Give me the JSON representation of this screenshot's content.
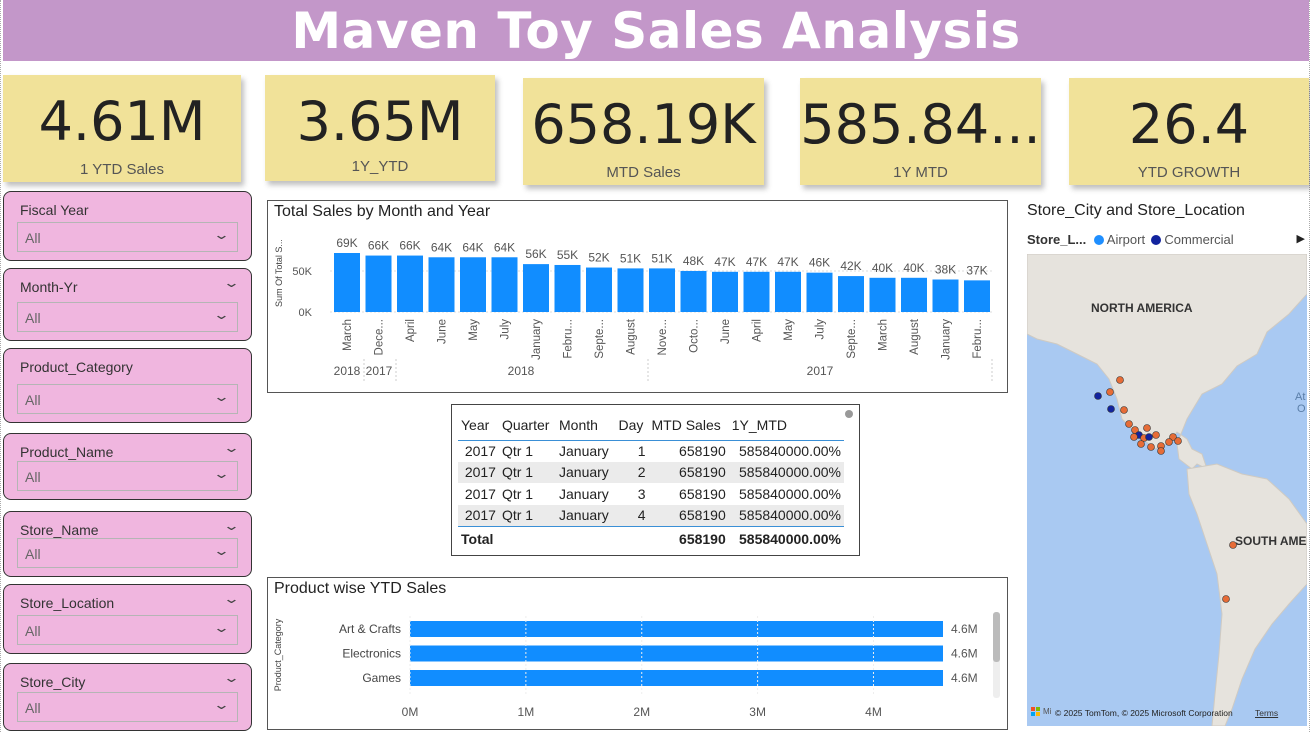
{
  "title": "Maven Toy Sales Analysis",
  "kpis": [
    {
      "value": "4.61M",
      "label": "1 YTD Sales"
    },
    {
      "value": "3.65M",
      "label": "1Y_YTD"
    },
    {
      "value": "658.19K",
      "label": "MTD Sales"
    },
    {
      "value": "585.84...",
      "label": "1Y  MTD"
    },
    {
      "value": "26.4",
      "label": "YTD GROWTH"
    }
  ],
  "slicers": [
    {
      "title": "Fiscal Year",
      "value": "All"
    },
    {
      "title": "Month-Yr",
      "value": "All"
    },
    {
      "title": "Product_Category",
      "value": "All"
    },
    {
      "title": "Product_Name",
      "value": "All"
    },
    {
      "title": "Store_Name",
      "value": "All"
    },
    {
      "title": "Store_Location",
      "value": "All"
    },
    {
      "title": "Store_City",
      "value": "All"
    }
  ],
  "month_chart": {
    "title": "Total Sales by Month and Year",
    "ylabel": "Sum Of Total S...",
    "yticks": [
      "50K",
      "0K"
    ],
    "year_groups": [
      "2018",
      "2017",
      "2018",
      "2017"
    ]
  },
  "product_chart": {
    "title": "Product wise YTD Sales",
    "ylabel": "Product_Category",
    "xticks": [
      "0M",
      "1M",
      "2M",
      "3M",
      "4M"
    ]
  },
  "table": {
    "headers": [
      "Year",
      "Quarter",
      "Month",
      "Day",
      "MTD Sales",
      "1Y_MTD"
    ],
    "rows": [
      [
        "2017",
        "Qtr 1",
        "January",
        "1",
        "658190",
        "585840000.00%"
      ],
      [
        "2017",
        "Qtr 1",
        "January",
        "2",
        "658190",
        "585840000.00%"
      ],
      [
        "2017",
        "Qtr 1",
        "January",
        "3",
        "658190",
        "585840000.00%"
      ],
      [
        "2017",
        "Qtr 1",
        "January",
        "4",
        "658190",
        "585840000.00%"
      ]
    ],
    "total": {
      "label": "Total",
      "mtd": "658190",
      "y1": "585840000.00%"
    }
  },
  "map": {
    "title": "Store_City and Store_Location",
    "legend_title": "Store_L...",
    "legend_items": [
      {
        "label": "Airport",
        "color": "#1f8fff"
      },
      {
        "label": "Commercial",
        "color": "#12239e"
      }
    ],
    "labels": [
      "NORTH AMERICA",
      "SOUTH AME",
      "At",
      "O"
    ],
    "attribution": "© 2025 TomTom, © 2025 Microsoft Corporation",
    "terms": "Terms",
    "ms_label": "Mi"
  },
  "colors": {
    "bar": "#118dff",
    "title_bg": "#c397c9",
    "kpi_bg": "#f1e299",
    "slicer_bg": "#f0b6df"
  },
  "chart_data": [
    {
      "type": "bar",
      "title": "Total Sales by Month and Year",
      "ylabel": "Sum Of Total S...",
      "categories": [
        "March",
        "Dece...",
        "April",
        "June",
        "May",
        "July",
        "January",
        "Febru...",
        "Septe...",
        "August",
        "Nove...",
        "Octo...",
        "June",
        "April",
        "May",
        "July",
        "Septe...",
        "March",
        "August",
        "January",
        "Febru..."
      ],
      "groups": [
        "2018",
        "2017",
        "2018",
        "2018",
        "2018",
        "2018",
        "2018",
        "2018",
        "2018",
        "2018",
        "2017",
        "2017",
        "2017",
        "2017",
        "2017",
        "2017",
        "2017",
        "2017",
        "2017",
        "2017",
        "2017"
      ],
      "values": [
        69,
        66,
        66,
        64,
        64,
        64,
        56,
        55,
        52,
        51,
        51,
        48,
        47,
        47,
        47,
        46,
        42,
        40,
        40,
        38,
        37
      ],
      "labels": [
        "69K",
        "66K",
        "66K",
        "64K",
        "64K",
        "64K",
        "56K",
        "55K",
        "52K",
        "51K",
        "51K",
        "48K",
        "47K",
        "47K",
        "47K",
        "46K",
        "42K",
        "40K",
        "40K",
        "38K",
        "37K"
      ],
      "ylim": [
        0,
        75
      ]
    },
    {
      "type": "bar",
      "orientation": "horizontal",
      "title": "Product wise YTD Sales",
      "ylabel": "Product_Category",
      "categories": [
        "Art & Crafts",
        "Electronics",
        "Games"
      ],
      "values": [
        4.6,
        4.6,
        4.6
      ],
      "labels": [
        "4.6M",
        "4.6M",
        "4.6M"
      ],
      "xlim": [
        0,
        4.6
      ]
    }
  ]
}
